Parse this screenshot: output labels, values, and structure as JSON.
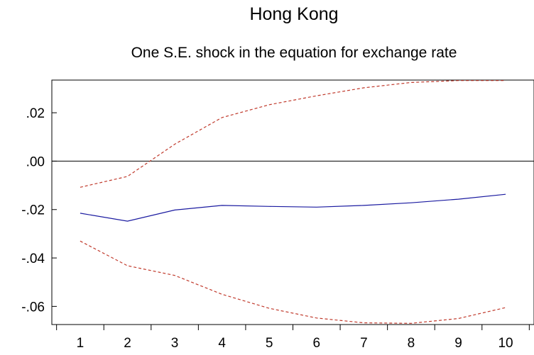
{
  "chart_data": {
    "type": "line",
    "title": "Hong Kong",
    "subtitle": "One S.E. shock in the equation for exchange rate",
    "xlabel": "",
    "ylabel": "",
    "categories": [
      "1",
      "2",
      "3",
      "4",
      "5",
      "6",
      "7",
      "8",
      "9",
      "10"
    ],
    "x": [
      1,
      2,
      3,
      4,
      5,
      6,
      7,
      8,
      9,
      10
    ],
    "yticks": [
      {
        "value": 0.02,
        "label": ".02"
      },
      {
        "value": 0.0,
        "label": ".00"
      },
      {
        "value": -0.02,
        "label": "-.02"
      },
      {
        "value": -0.04,
        "label": "-.04"
      },
      {
        "value": -0.06,
        "label": "-.06"
      }
    ],
    "ylim": [
      -0.0675,
      0.0335
    ],
    "xlim": [
      0.4,
      10.6
    ],
    "grid": false,
    "zero_line": true,
    "series": [
      {
        "role": "response",
        "color": "#1a1aa0",
        "style": "solid",
        "values": [
          -0.0215,
          -0.0248,
          -0.0202,
          -0.0183,
          -0.0187,
          -0.019,
          -0.0183,
          -0.0172,
          -0.0157,
          -0.0137
        ]
      },
      {
        "role": "upper-band",
        "color": "#c0392b",
        "style": "dashed",
        "values": [
          -0.0108,
          -0.0063,
          0.007,
          0.018,
          0.0233,
          0.027,
          0.0303,
          0.0325,
          0.0333,
          0.0333
        ]
      },
      {
        "role": "lower-band",
        "color": "#c0392b",
        "style": "dashed",
        "values": [
          -0.033,
          -0.0432,
          -0.0472,
          -0.055,
          -0.0608,
          -0.0648,
          -0.0668,
          -0.067,
          -0.065,
          -0.0605
        ]
      }
    ]
  }
}
